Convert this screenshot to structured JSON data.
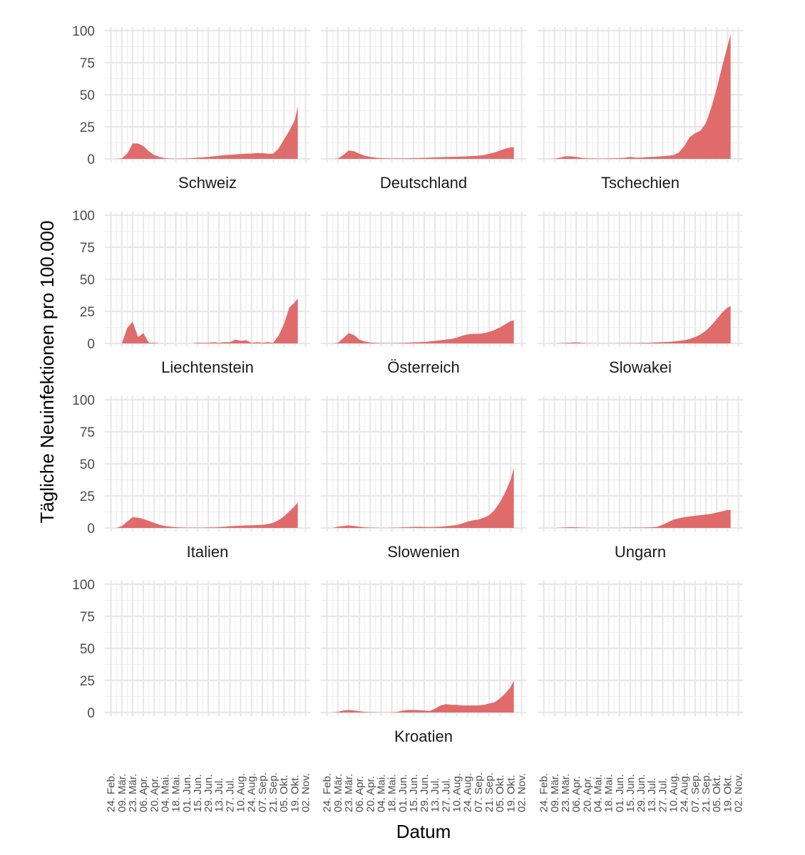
{
  "chart_data": {
    "type": "area",
    "xlabel": "Datum",
    "ylabel": "Tägliche Neuinfektionen pro 100.000",
    "ylim": [
      0,
      100
    ],
    "yticks": [
      0,
      25,
      50,
      75,
      100
    ],
    "fill_color": "#e06b6b",
    "x_tick_labels": [
      "24. Feb.",
      "09. Mär.",
      "23. Mär.",
      "06. Apr.",
      "20. Apr.",
      "04. Mai.",
      "18. Mai.",
      "01. Jun.",
      "15. Jun.",
      "29. Jun.",
      "13. Jul.",
      "27. Jul.",
      "10. Aug.",
      "24. Aug.",
      "07. Sep.",
      "21. Sep.",
      "05. Okt.",
      "19. Okt.",
      "02. Nov."
    ],
    "day_offsets": [
      0,
      7,
      14,
      21,
      28,
      35,
      42,
      49,
      56,
      63,
      70,
      77,
      84,
      91,
      98,
      105,
      112,
      119,
      126,
      133,
      140,
      147,
      154,
      161,
      168,
      175,
      182,
      189,
      196,
      203,
      210,
      217,
      224,
      231,
      238,
      242
    ],
    "x_range_days": [
      -8,
      258
    ],
    "panels": [
      {
        "name": "Schweiz",
        "values": [
          0,
          0,
          0.5,
          4,
          12,
          12,
          10,
          6,
          3,
          1.5,
          0.5,
          0.3,
          0.2,
          0.3,
          0.4,
          0.5,
          1,
          1.2,
          1.5,
          2,
          2.5,
          3,
          3.2,
          3.5,
          3.8,
          4,
          4.2,
          4.5,
          4.5,
          4,
          4,
          8,
          15,
          22,
          30,
          41
        ]
      },
      {
        "name": "Deutschland",
        "values": [
          0,
          0,
          0.3,
          3,
          6.5,
          6,
          4,
          2.5,
          1.5,
          1,
          0.6,
          0.5,
          0.4,
          0.4,
          0.4,
          0.5,
          0.6,
          0.7,
          0.8,
          1,
          1.2,
          1.3,
          1.5,
          1.6,
          1.7,
          1.8,
          2,
          2.2,
          2.5,
          3,
          4,
          5,
          6.5,
          8,
          9,
          9
        ]
      },
      {
        "name": "Tschechien",
        "values": [
          0,
          0,
          0.2,
          1,
          2,
          2,
          1.5,
          0.8,
          0.5,
          0.4,
          0.3,
          0.3,
          0.4,
          0.5,
          0.6,
          0.8,
          1.5,
          1,
          1,
          1.3,
          1.5,
          1.8,
          2,
          2.5,
          3,
          5,
          10,
          17,
          20,
          22,
          28,
          40,
          55,
          72,
          88,
          97
        ]
      },
      {
        "name": "Liechtenstein",
        "values": [
          0,
          0,
          0,
          12,
          17,
          5,
          8,
          0.5,
          0.5,
          0,
          0,
          0,
          0,
          0,
          0,
          0,
          0.5,
          0.5,
          0.5,
          1,
          0.5,
          1,
          1,
          3,
          2,
          2.5,
          0.5,
          1,
          0.5,
          1,
          0.5,
          6,
          15,
          28,
          32,
          35
        ]
      },
      {
        "name": "Österreich",
        "values": [
          0,
          0,
          0.5,
          4,
          8,
          6.5,
          3,
          1.5,
          0.7,
          0.4,
          0.3,
          0.2,
          0.2,
          0.3,
          0.4,
          0.6,
          0.8,
          1,
          1.2,
          1.5,
          2,
          2.5,
          3,
          3.5,
          4.5,
          6,
          7,
          7.5,
          7.5,
          8,
          9,
          10.5,
          12.5,
          15,
          17.5,
          18
        ]
      },
      {
        "name": "Slowakei",
        "values": [
          0,
          0,
          0,
          0.2,
          0.4,
          0.6,
          0.8,
          0.4,
          0.2,
          0.1,
          0.1,
          0.1,
          0.1,
          0.1,
          0.2,
          0.2,
          0.3,
          0.3,
          0.4,
          0.5,
          0.6,
          0.8,
          1,
          1.2,
          1.5,
          2,
          2.5,
          3.5,
          5,
          7,
          10,
          14,
          19,
          24,
          28,
          29
        ]
      },
      {
        "name": "Italien",
        "values": [
          0,
          0,
          1.5,
          5,
          8.5,
          8,
          7,
          5.5,
          4,
          2.5,
          1.5,
          1,
          0.6,
          0.4,
          0.3,
          0.3,
          0.3,
          0.3,
          0.4,
          0.5,
          0.7,
          1,
          1.3,
          1.6,
          1.8,
          2,
          2.1,
          2.2,
          2.4,
          3,
          4,
          6,
          9,
          13,
          17,
          20
        ]
      },
      {
        "name": "Slowenien",
        "values": [
          0,
          0,
          1,
          1.5,
          2,
          1.5,
          1,
          0.5,
          0.3,
          0.2,
          0.1,
          0.1,
          0.2,
          0.3,
          0.5,
          0.6,
          0.8,
          0.9,
          0.8,
          0.7,
          0.8,
          1,
          1.3,
          1.8,
          2.3,
          3.5,
          5,
          6,
          6.5,
          8,
          10,
          14,
          20,
          28,
          38,
          47
        ]
      },
      {
        "name": "Ungarn",
        "values": [
          0,
          0,
          0,
          0.2,
          0.4,
          0.6,
          0.5,
          0.3,
          0.2,
          0.1,
          0.1,
          0.1,
          0.1,
          0.1,
          0.1,
          0.2,
          0.2,
          0.3,
          0.3,
          0.4,
          0.5,
          1,
          2.5,
          4.5,
          6.5,
          7.5,
          8.5,
          9,
          9.5,
          10,
          10.5,
          11,
          12,
          13,
          14,
          14
        ]
      },
      {
        "name": "",
        "values": []
      },
      {
        "name": "Kroatien",
        "values": [
          0,
          0,
          0.5,
          1.5,
          2,
          1.5,
          1,
          0.5,
          0.3,
          0.2,
          0.1,
          0.1,
          0.2,
          0.5,
          1.5,
          2,
          2,
          1.8,
          1.5,
          1.2,
          3,
          5.5,
          6.5,
          6,
          6,
          5.5,
          5.5,
          5.5,
          5.5,
          6,
          7,
          8,
          11,
          15,
          20,
          25
        ]
      },
      {
        "name": "",
        "values": []
      }
    ]
  }
}
